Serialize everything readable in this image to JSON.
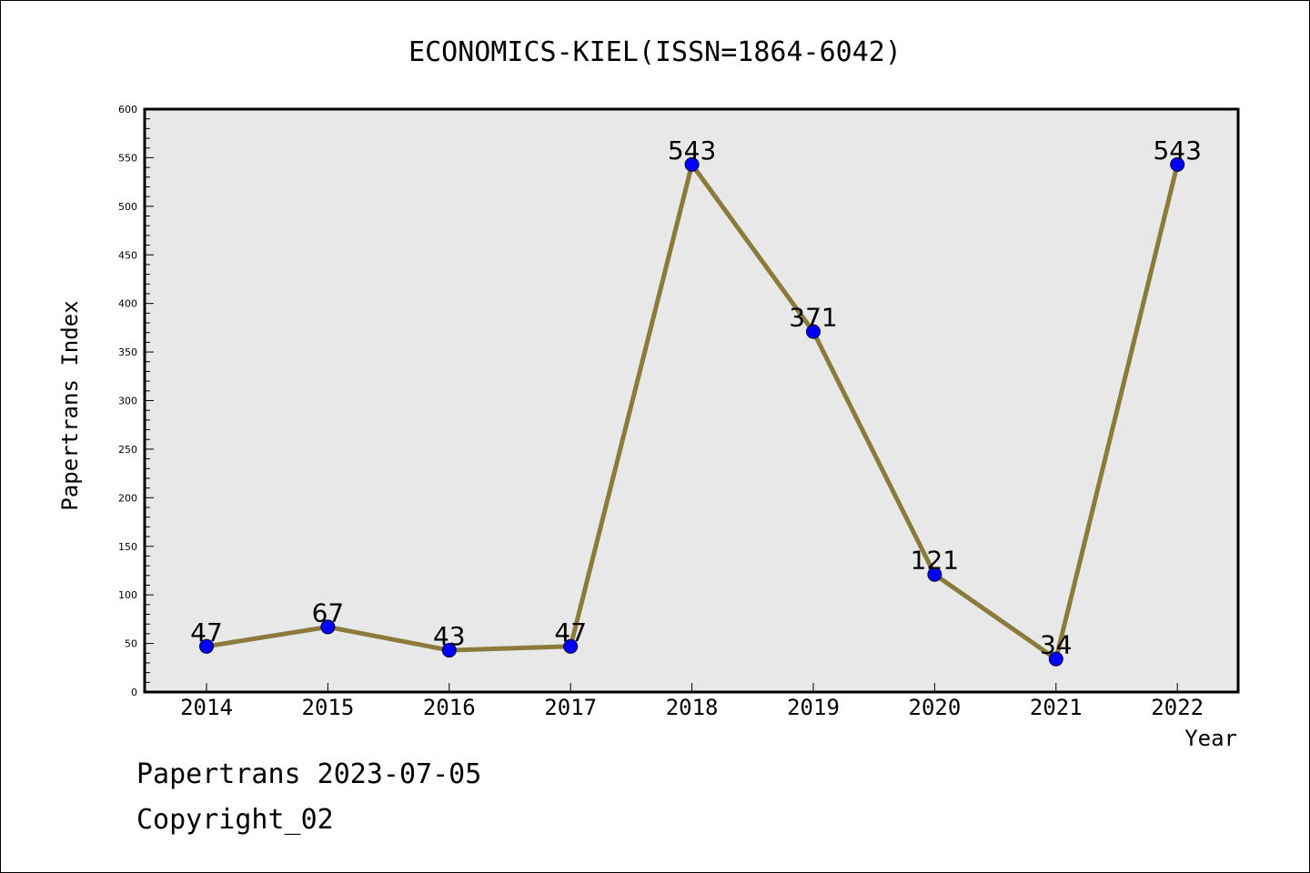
{
  "chart_data": {
    "type": "line",
    "title": "ECONOMICS-KIEL(ISSN=1864-6042)",
    "xlabel": "Year",
    "ylabel": "Papertrans Index",
    "categories": [
      "2014",
      "2015",
      "2016",
      "2017",
      "2018",
      "2019",
      "2020",
      "2021",
      "2022"
    ],
    "series": [
      {
        "values": [
          47,
          67,
          43,
          47,
          543,
          371,
          121,
          34,
          543
        ],
        "labels": [
          "47",
          "67",
          "43",
          "47",
          "543",
          "371",
          "121",
          "34",
          "543"
        ]
      }
    ],
    "ylim": [
      0,
      600
    ],
    "yticks": [
      "0",
      "50",
      "100",
      "150",
      "200",
      "250",
      "300",
      "350",
      "400",
      "450",
      "500",
      "550",
      "600"
    ],
    "grid": false,
    "colors": {
      "line": "#8B7B3A",
      "marker": "#0000FF",
      "plot_background": "#E8E8E8"
    }
  },
  "footer": {
    "line1": "Papertrans 2023-07-05",
    "line2": "Copyright_02"
  }
}
